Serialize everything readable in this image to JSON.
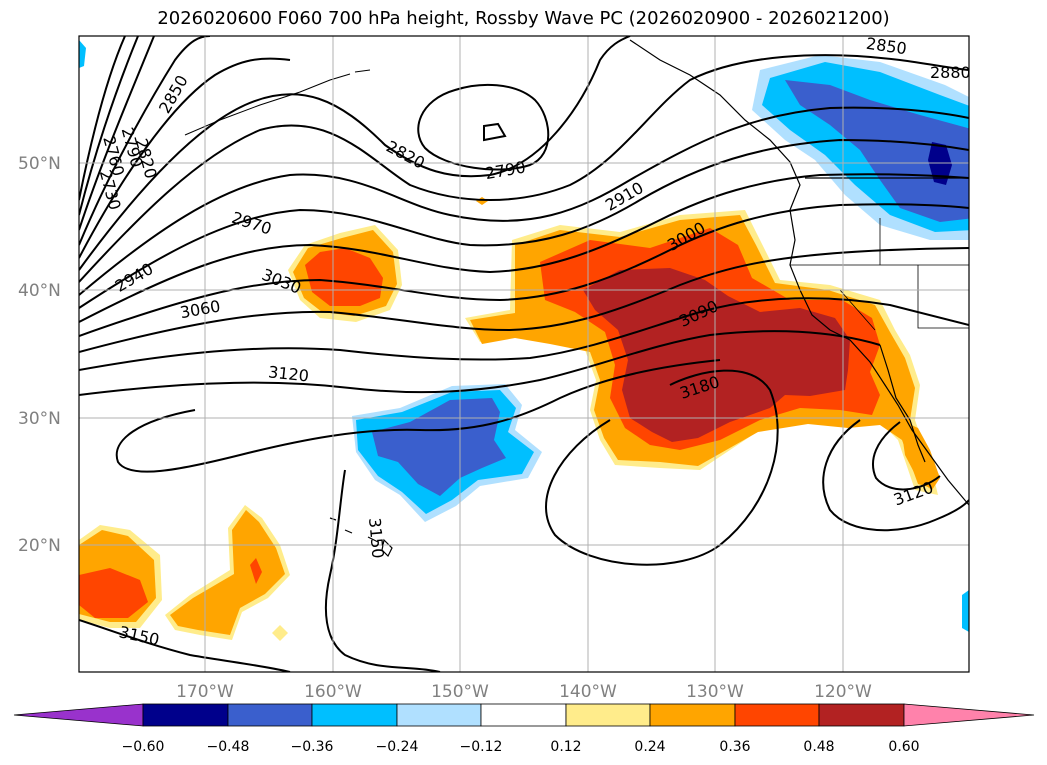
{
  "title": "2026020600 F060 700 hPa height, Rossby Wave PC (2026020900 - 2026021200)",
  "colors": {
    "neg_060": "#9932cc",
    "neg_048": "#00008b",
    "neg_036": "#3a5fcd",
    "neg_024": "#00bfff",
    "neg_012": "#b0e0ff",
    "neutral": "#ffffff",
    "pos_012": "#ffec8b",
    "pos_024": "#ffa500",
    "pos_036": "#ff4500",
    "pos_048": "#b22222",
    "pos_060": "#ff82ab",
    "grid": "#b0b0b0",
    "axis_label": "#808080"
  },
  "lat_labels": [
    "50°N",
    "40°N",
    "30°N",
    "20°N"
  ],
  "lon_labels": [
    "170°W",
    "160°W",
    "150°W",
    "140°W",
    "130°W",
    "120°W"
  ],
  "contour_labels": [
    "2850",
    "2760",
    "2790",
    "2820",
    "2730",
    "2850",
    "2880",
    "2820",
    "2790",
    "2910",
    "2970",
    "3000",
    "2940",
    "3030",
    "3060",
    "3090",
    "3120",
    "3180",
    "3150",
    "3120",
    "3150"
  ],
  "colorbar_ticks": [
    "−0.60",
    "−0.48",
    "−0.36",
    "−0.24",
    "−0.12",
    "0.12",
    "0.24",
    "0.36",
    "0.48",
    "0.60"
  ]
}
